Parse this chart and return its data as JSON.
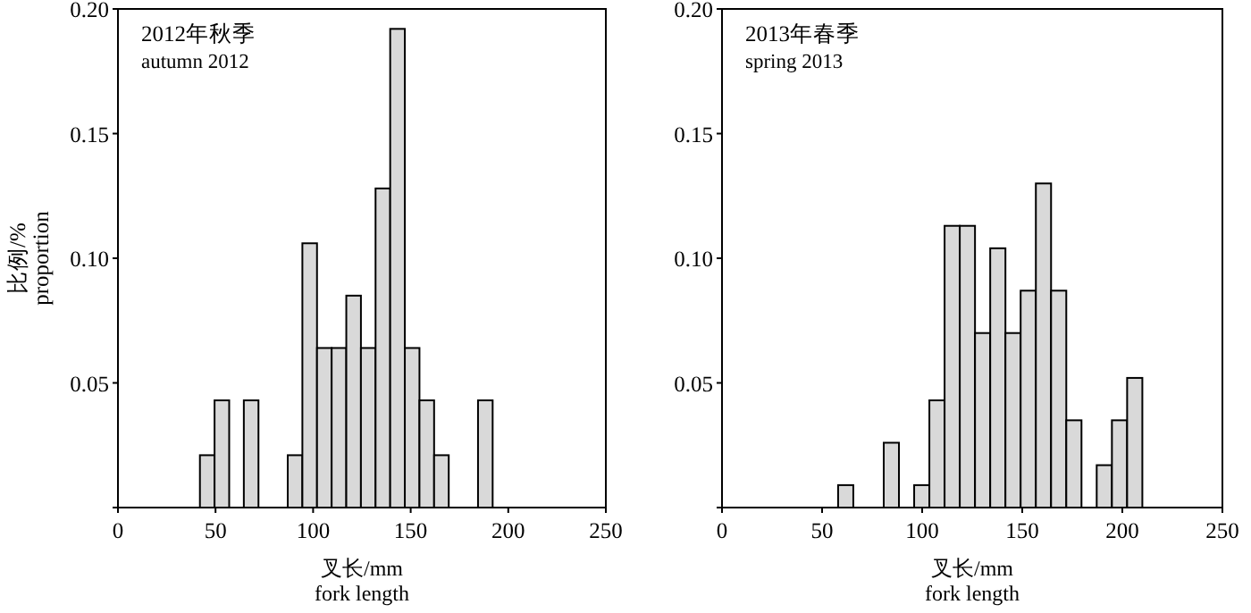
{
  "chart_data": [
    {
      "type": "histogram",
      "title": "2012年秋季",
      "subtitle": "autumn 2012",
      "xlabel": "叉长/mm\nfork length",
      "ylabel": "比例/%\nproportion",
      "color": "#d9d9d9",
      "bins": [
        42,
        49.5,
        57,
        64.5,
        72,
        79.5,
        87,
        94.5,
        102,
        109.5,
        117,
        124.5,
        132,
        139.5,
        147,
        154.5,
        162,
        169.5,
        177,
        184.5,
        192
      ],
      "values": [
        0.021,
        0.043,
        0,
        0.043,
        0,
        0,
        0.021,
        0.106,
        0.064,
        0.064,
        0.085,
        0.064,
        0.128,
        0.192,
        0.064,
        0.043,
        0.021,
        0,
        0,
        0.043
      ],
      "xlim": [
        0,
        250
      ],
      "ylim": [
        0,
        0.2
      ],
      "xticks": [
        0,
        50,
        100,
        150,
        200,
        250
      ],
      "yticks": [
        {
          "value": 0,
          "label": null
        },
        {
          "value": 0.05,
          "label": "0.05"
        },
        {
          "value": 0.1,
          "label": "0.10"
        },
        {
          "value": 0.15,
          "label": "0.15"
        },
        {
          "value": 0.2,
          "label": "0.20"
        }
      ]
    },
    {
      "type": "histogram",
      "title": "2013年春季",
      "subtitle": "spring 2013",
      "xlabel": "叉长/mm\nfork length",
      "color": "#d9d9d9",
      "bins": [
        58,
        65.6,
        73.2,
        80.8,
        88.4,
        96,
        103.6,
        111.2,
        118.8,
        126.4,
        134,
        141.6,
        149.2,
        156.8,
        164.4,
        172,
        179.6,
        187.2,
        194.8,
        202.4,
        210
      ],
      "values": [
        0.009,
        0,
        0,
        0.026,
        0,
        0.009,
        0.043,
        0.113,
        0.113,
        0.07,
        0.104,
        0.07,
        0.087,
        0.13,
        0.087,
        0.035,
        0,
        0.017,
        0.035,
        0.052
      ],
      "xlim": [
        0,
        250
      ],
      "ylim": [
        0,
        0.2
      ],
      "xticks": [
        0,
        50,
        100,
        150,
        200,
        250
      ],
      "yticks": [
        {
          "value": 0,
          "label": null
        },
        {
          "value": 0.05,
          "label": "0.05"
        },
        {
          "value": 0.1,
          "label": "0.10"
        },
        {
          "value": 0.15,
          "label": "0.15"
        },
        {
          "value": 0.2,
          "label": "0.20"
        }
      ]
    }
  ]
}
